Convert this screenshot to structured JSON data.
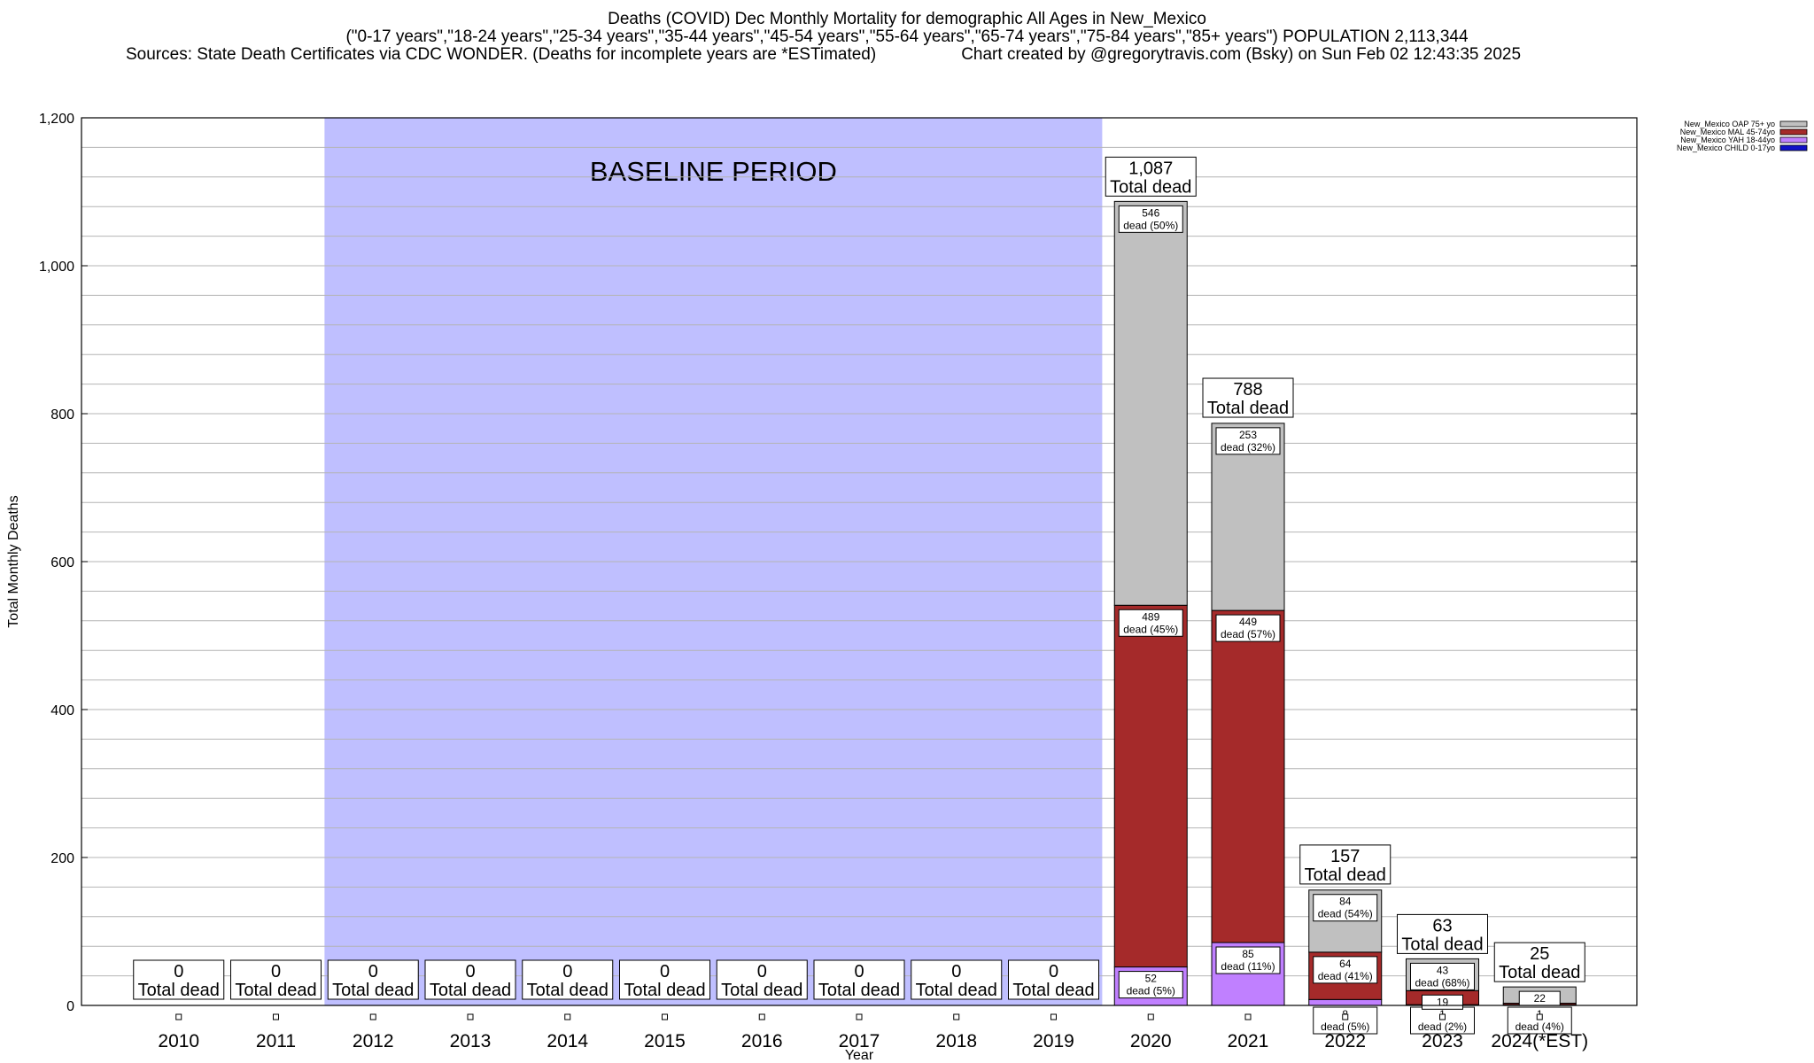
{
  "header": {
    "title": "Deaths (COVID) Dec Monthly Mortality for demographic All Ages in New_Mexico",
    "subtitle": "(\"0-17 years\",\"18-24 years\",\"25-34 years\",\"35-44 years\",\"45-54 years\",\"55-64 years\",\"65-74 years\",\"75-84 years\",\"85+ years\") POPULATION 2,113,344",
    "sources": "Sources: State Death Certificates via CDC WONDER. (Deaths for incomplete years are *ESTimated)",
    "credit": "Chart created by @gregorytravis.com (Bsky) on Sun Feb 02 12:43:35 2025"
  },
  "chart_data": {
    "type": "bar",
    "stacked": true,
    "xlabel": "Year",
    "ylabel": "Total Monthly Deaths",
    "ylim": [
      0,
      1200
    ],
    "yticks": [
      0,
      200,
      400,
      600,
      800,
      1000,
      1200
    ],
    "ytick_labels": [
      "0",
      "200",
      "400",
      "600",
      "800",
      "1,000",
      "1,200"
    ],
    "grid": true,
    "legend_position": "top-right",
    "baseline_label": "BASELINE PERIOD",
    "baseline_years": [
      "2012",
      "2019"
    ],
    "total_suffix": "Total dead",
    "categories": [
      "2010",
      "2011",
      "2012",
      "2013",
      "2014",
      "2015",
      "2016",
      "2017",
      "2018",
      "2019",
      "2020",
      "2021",
      "2022",
      "2023",
      "2024(*EST)"
    ],
    "totals": [
      0,
      0,
      0,
      0,
      0,
      0,
      0,
      0,
      0,
      0,
      1087,
      788,
      157,
      63,
      25
    ],
    "total_labels": [
      "0",
      "0",
      "0",
      "0",
      "0",
      "0",
      "0",
      "0",
      "0",
      "0",
      "1,087",
      "788",
      "157",
      "63",
      "25"
    ],
    "series": [
      {
        "name": "New_Mexico CHILD 0-17yo",
        "color": "#1010c8",
        "values": [
          0,
          0,
          0,
          0,
          0,
          0,
          0,
          0,
          0,
          0,
          0,
          0,
          0,
          0,
          0
        ],
        "labels": [
          null,
          null,
          null,
          null,
          null,
          null,
          null,
          null,
          null,
          null,
          null,
          null,
          null,
          null,
          null
        ]
      },
      {
        "name": "New_Mexico YAH 18-44yo",
        "color": "#c080ff",
        "values": [
          0,
          0,
          0,
          0,
          0,
          0,
          0,
          0,
          0,
          0,
          52,
          85,
          8,
          1,
          1
        ],
        "labels": [
          null,
          null,
          null,
          null,
          null,
          null,
          null,
          null,
          null,
          null,
          "52|dead (5%)",
          "85|dead (11%)",
          "8|dead (5%)",
          "1|dead (2%)",
          "1|dead (4%)"
        ]
      },
      {
        "name": "New_Mexico MAL 45-74yo",
        "color": "#a52a2a",
        "values": [
          0,
          0,
          0,
          0,
          0,
          0,
          0,
          0,
          0,
          0,
          489,
          449,
          64,
          19,
          2
        ],
        "labels": [
          null,
          null,
          null,
          null,
          null,
          null,
          null,
          null,
          null,
          null,
          "489|dead (45%)",
          "449|dead (57%)",
          "64|dead (41%)",
          "19",
          null
        ]
      },
      {
        "name": "New_Mexico OAP 75+ yo",
        "color": "#c0c0c0",
        "values": [
          0,
          0,
          0,
          0,
          0,
          0,
          0,
          0,
          0,
          0,
          546,
          253,
          84,
          43,
          22
        ],
        "labels": [
          null,
          null,
          null,
          null,
          null,
          null,
          null,
          null,
          null,
          null,
          "546|dead (50%)",
          "253|dead (32%)",
          "84|dead (54%)",
          "43|dead (68%)",
          "22"
        ]
      }
    ]
  }
}
